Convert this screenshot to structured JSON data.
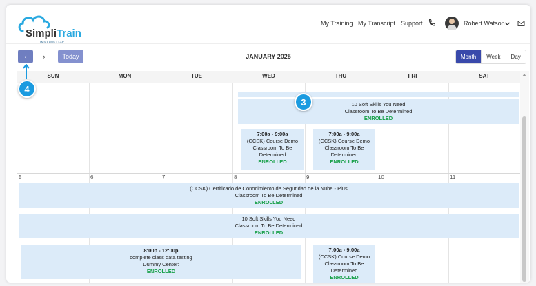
{
  "brand": {
    "name_part1": "Simpli",
    "name_part2": "Train",
    "tagline": "TMS • LMS • LXP"
  },
  "nav": {
    "my_training": "My Training",
    "my_transcript": "My Transcript",
    "support": "Support",
    "user_name": "Robert Watson"
  },
  "toolbar": {
    "prev": "‹",
    "next": "›",
    "today": "Today",
    "title": "JANUARY 2025",
    "views": [
      "Month",
      "Week",
      "Day"
    ],
    "active_view": "Month"
  },
  "calendar": {
    "days_of_week": [
      "SUN",
      "MON",
      "TUE",
      "WED",
      "THU",
      "FRI",
      "SAT"
    ],
    "week2_day_numbers": [
      "5",
      "6",
      "7",
      "8",
      "9",
      "10",
      "11"
    ],
    "events": {
      "soft_skills_week1": {
        "line1": "10 Soft Skills You Need",
        "line2": "Classroom To Be Determined",
        "status": "ENROLLED"
      },
      "ccsk_wed": {
        "time": "7:00a - 9:00a",
        "line1": "(CCSK) Course Demo",
        "line2": "Classroom To Be",
        "line3": "Determined",
        "status": "ENROLLED"
      },
      "ccsk_thu": {
        "time": "7:00a - 9:00a",
        "line1": "(CCSK) Course Demo",
        "line2": "Classroom To Be",
        "line3": "Determined",
        "status": "ENROLLED"
      },
      "certificado": {
        "line1": "(CCSK) Certificado de Conocimiento de Seguridad de la Nube - Plus",
        "line2": "Classroom To Be Determined",
        "status": "ENROLLED"
      },
      "soft_skills_week2": {
        "line1": "10 Soft Skills You Need",
        "line2": "Classroom To Be Determined",
        "status": "ENROLLED"
      },
      "class_testing": {
        "time": "8:00p - 12:00p",
        "line1": "complete class data testing",
        "line2": "Dummy Center:",
        "status": "ENROLLED"
      },
      "ccsk_thu_w2": {
        "time": "7:00a - 9:00a",
        "line1": "(CCSK) Course Demo",
        "line2": "Classroom To Be",
        "line3": "Determined",
        "status": "ENROLLED"
      }
    }
  },
  "callouts": {
    "three": "3",
    "four": "4"
  },
  "colors": {
    "accent": "#3949ab",
    "event_bg": "#dcebf9",
    "enrolled": "#18a049",
    "badge": "#1b9be0"
  }
}
